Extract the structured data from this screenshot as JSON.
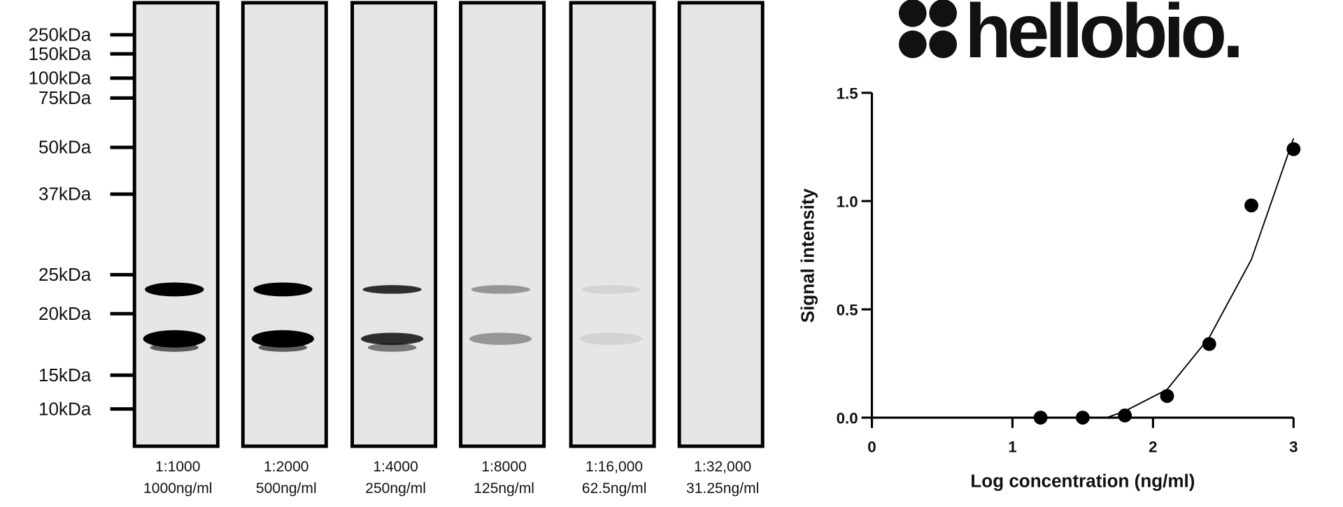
{
  "logo": "hellobio.",
  "blot": {
    "markers": [
      "250kDa",
      "150kDa",
      "100kDa",
      "75kDa",
      "50kDa",
      "37kDa",
      "25kDa",
      "20kDa",
      "15kDa",
      "10kDa"
    ],
    "lanes": [
      {
        "dilution": "1:1000",
        "concentration": "1000ng/ml"
      },
      {
        "dilution": "1:2000",
        "concentration": "500ng/ml"
      },
      {
        "dilution": "1:4000",
        "concentration": "250ng/ml"
      },
      {
        "dilution": "1:8000",
        "concentration": "125ng/ml"
      },
      {
        "dilution": "1:16,000",
        "concentration": "62.5ng/ml"
      },
      {
        "dilution": "1:32,000",
        "concentration": "31.25ng/ml"
      }
    ]
  },
  "chart_data": {
    "type": "scatter",
    "x_label": "Log concentration (ng/ml)",
    "y_label": "Signal intensity",
    "x": [
      1.2,
      1.5,
      1.8,
      2.1,
      2.4,
      2.7,
      3.0
    ],
    "values": [
      0,
      0,
      0.01,
      0.1,
      0.34,
      0.98,
      1.24
    ],
    "color": "#000000",
    "fit": {
      "x": [
        1.67,
        1.8,
        2.1,
        2.4,
        2.7,
        3.0
      ],
      "values": [
        0,
        0.03,
        0.13,
        0.37,
        0.73,
        1.29
      ]
    },
    "xlim": [
      0,
      3
    ],
    "ylim": [
      0,
      1.5
    ],
    "xticks": [
      0,
      1,
      2,
      3
    ],
    "yticks": [
      {
        "value": 0,
        "label": "0.0"
      },
      {
        "value": 0.5,
        "label": "0.5"
      },
      {
        "value": 1,
        "label": "1.0"
      },
      {
        "value": 1.5,
        "label": "1.5"
      }
    ]
  }
}
